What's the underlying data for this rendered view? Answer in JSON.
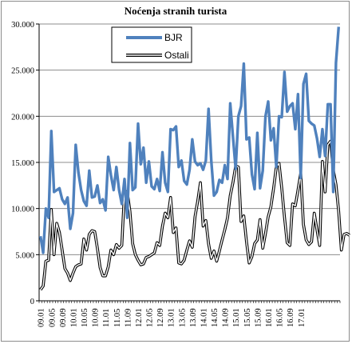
{
  "chart_data": {
    "type": "line",
    "title": "Noćenja stranih turista",
    "xlabel": "",
    "ylabel": "",
    "ylim": [
      0,
      30000
    ],
    "yticks": [
      0,
      5000,
      10000,
      15000,
      20000,
      25000,
      30000
    ],
    "ytick_labels": [
      "0",
      "5.000",
      "10.000",
      "15.000",
      "20.000",
      "25.000",
      "30.000"
    ],
    "grid": true,
    "legend_position": "top-center",
    "x_tick_labels": [
      "09.01",
      "09.05",
      "09.09",
      "10.01",
      "10.05",
      "10.09",
      "11.01",
      "11.05",
      "11.09",
      "12.01",
      "12.05",
      "12.09",
      "13.01",
      "13.05",
      "13.09",
      "14.01",
      "14.05",
      "14.09",
      "15.01",
      "15.05",
      "15.09",
      "16.01",
      "16.05",
      "16.09",
      "17.01"
    ],
    "x_tick_interval_months": 4,
    "series": [
      {
        "name": "BJR",
        "color": "#4f81bd",
        "style": "thick-solid",
        "values": [
          7000,
          5200,
          10000,
          9000,
          18400,
          11800,
          12000,
          12200,
          11000,
          10500,
          11200,
          7800,
          9500,
          16900,
          13900,
          12000,
          10800,
          10300,
          14100,
          11200,
          11300,
          12500,
          10600,
          11000,
          9800,
          15600,
          13600,
          12000,
          14500,
          12000,
          10500,
          13200,
          9000,
          17100,
          12000,
          12300,
          19200,
          14800,
          16600,
          12800,
          15100,
          12400,
          12100,
          13200,
          11900,
          16100,
          12800,
          11800,
          18600,
          18500,
          18900,
          14500,
          15200,
          13000,
          12600,
          14200,
          17500,
          15100,
          14700,
          14900,
          14200,
          15200,
          20800,
          15200,
          11400,
          11800,
          13100,
          12800,
          14700,
          13200,
          21400,
          17800,
          14300,
          20000,
          21100,
          25700,
          17500,
          17700,
          13700,
          12100,
          18200,
          12200,
          14100,
          20000,
          21600,
          17400,
          18700,
          14500,
          20000,
          19900,
          24800,
          20500,
          21100,
          21400,
          18600,
          22400,
          13300,
          23500,
          24600,
          19500,
          19200,
          19000,
          17600,
          15600,
          18600,
          15700,
          21300,
          21300,
          11800,
          25800,
          29700
        ]
      },
      {
        "name": "Ostali",
        "color": "#000000",
        "style": "black-outlined",
        "values": [
          1200,
          1600,
          4300,
          4400,
          9900,
          5000,
          8400,
          7400,
          5500,
          3500,
          3000,
          2200,
          3000,
          3700,
          3900,
          4000,
          6700,
          5500,
          7200,
          7600,
          7500,
          5700,
          3600,
          2700,
          2700,
          3700,
          5500,
          5000,
          6100,
          5700,
          6000,
          11900,
          11800,
          9700,
          6200,
          5000,
          4400,
          3900,
          4000,
          4700,
          4800,
          5000,
          5200,
          6300,
          6000,
          8100,
          9500,
          9000,
          11200,
          7400,
          7900,
          4100,
          4000,
          4400,
          5500,
          6500,
          5800,
          9100,
          10800,
          12800,
          8100,
          8700,
          6200,
          4600,
          5400,
          4300,
          5400,
          6600,
          7700,
          9000,
          11400,
          12800,
          14600,
          14500,
          8600,
          9200,
          6400,
          4100,
          4800,
          6200,
          6600,
          8800,
          5700,
          7300,
          9100,
          10200,
          12200,
          14500,
          14900,
          12200,
          9100,
          6300,
          6000,
          10500,
          10300,
          12000,
          13800,
          8300,
          6600,
          6100,
          6400,
          9500,
          7700,
          6000,
          15100,
          11800,
          16900,
          17300,
          14200,
          12600,
          9700,
          5500,
          7200,
          7300,
          7100
        ]
      }
    ]
  }
}
